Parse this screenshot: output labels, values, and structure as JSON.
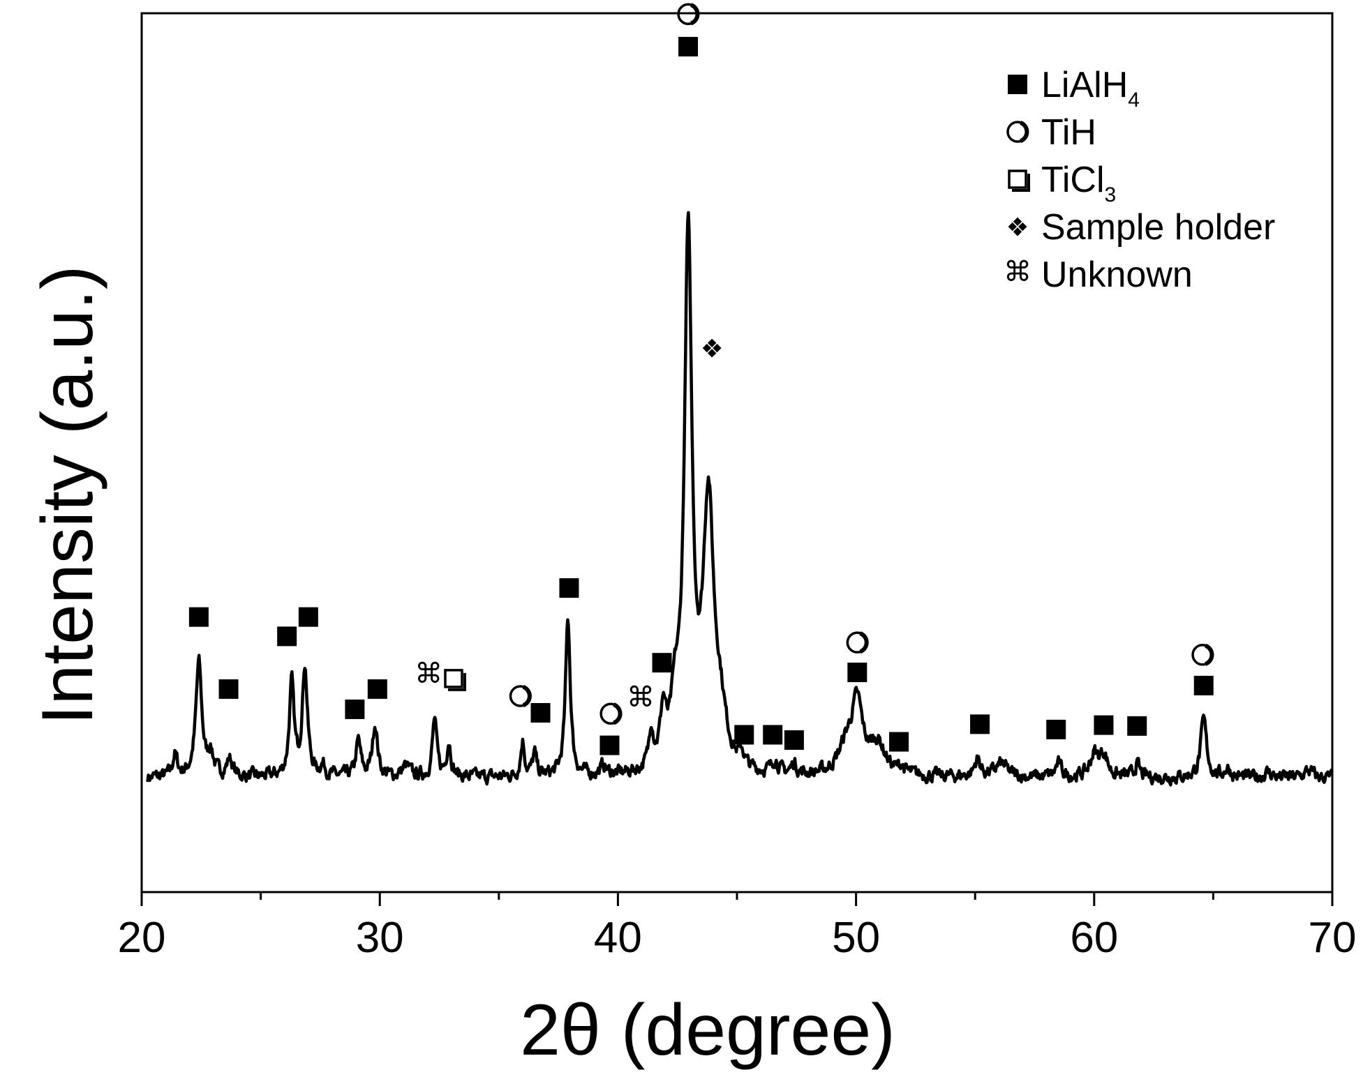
{
  "chart_data": {
    "type": "line",
    "title": "",
    "xlabel": "2θ (degree)",
    "ylabel": "Intensity (a.u.)",
    "xlim": [
      20,
      70
    ],
    "ylim": [
      0,
      100
    ],
    "x_ticks": [
      20,
      30,
      40,
      50,
      60,
      70
    ],
    "x_tick_labels": [
      "20",
      "30",
      "40",
      "50",
      "60",
      "70"
    ],
    "x_minor_ticks": [
      25,
      35,
      45,
      55,
      65
    ],
    "y_ticks_shown": false,
    "grid": false,
    "baseline": 13,
    "peaks": [
      {
        "x": 21.4,
        "h": 2.5,
        "w": 0.12
      },
      {
        "x": 22.4,
        "h": 13,
        "w": 0.15
      },
      {
        "x": 22.9,
        "h": 2.5,
        "w": 0.15
      },
      {
        "x": 23.7,
        "h": 2,
        "w": 0.15
      },
      {
        "x": 26.3,
        "h": 10.5,
        "w": 0.12
      },
      {
        "x": 26.85,
        "h": 12.5,
        "w": 0.13
      },
      {
        "x": 27.6,
        "h": 1.2,
        "w": 0.15
      },
      {
        "x": 29.1,
        "h": 4,
        "w": 0.12
      },
      {
        "x": 29.8,
        "h": 6,
        "w": 0.13
      },
      {
        "x": 31.1,
        "h": 1.2,
        "w": 0.2
      },
      {
        "x": 32.3,
        "h": 6.5,
        "w": 0.11
      },
      {
        "x": 32.9,
        "h": 4,
        "w": 0.11
      },
      {
        "x": 36,
        "h": 4,
        "w": 0.1
      },
      {
        "x": 36.5,
        "h": 2.5,
        "w": 0.1
      },
      {
        "x": 37.9,
        "h": 18,
        "w": 0.12
      },
      {
        "x": 39.4,
        "h": 1,
        "w": 0.15
      },
      {
        "x": 41.4,
        "h": 4.5,
        "w": 0.11
      },
      {
        "x": 41.9,
        "h": 6,
        "w": 0.15
      },
      {
        "x": 42.4,
        "h": 6,
        "w": 0.2
      },
      {
        "x": 42.95,
        "h": 60,
        "w": 0.19
      },
      {
        "x": 43.8,
        "h": 30,
        "w": 0.27
      },
      {
        "x": 44.3,
        "h": 5,
        "w": 0.3
      },
      {
        "x": 45.2,
        "h": 1.5,
        "w": 0.12
      },
      {
        "x": 46.6,
        "h": 1.5,
        "w": 0.15
      },
      {
        "x": 47.4,
        "h": 1.2,
        "w": 0.12
      },
      {
        "x": 49.6,
        "h": 3,
        "w": 0.4
      },
      {
        "x": 50.05,
        "h": 7.5,
        "w": 0.28
      },
      {
        "x": 50.9,
        "h": 3.5,
        "w": 0.4
      },
      {
        "x": 51.9,
        "h": 0.8,
        "w": 0.15
      },
      {
        "x": 55.1,
        "h": 2,
        "w": 0.15
      },
      {
        "x": 56.1,
        "h": 1.5,
        "w": 0.3
      },
      {
        "x": 58.5,
        "h": 1.5,
        "w": 0.15
      },
      {
        "x": 60,
        "h": 2.5,
        "w": 0.2
      },
      {
        "x": 60.4,
        "h": 2.5,
        "w": 0.2
      },
      {
        "x": 61.8,
        "h": 1.5,
        "w": 0.12
      },
      {
        "x": 64.6,
        "h": 6.5,
        "w": 0.15
      },
      {
        "x": 65.6,
        "h": 1,
        "w": 0.15
      },
      {
        "x": 67.3,
        "h": 0.6,
        "w": 0.2
      },
      {
        "x": 69,
        "h": 0.8,
        "w": 0.2
      }
    ],
    "annotations": [
      {
        "symbol": "filled-square",
        "x": 22.4,
        "y": 31.3
      },
      {
        "symbol": "filled-square",
        "x": 23.65,
        "y": 23.1
      },
      {
        "symbol": "filled-square",
        "x": 26.1,
        "y": 29.1
      },
      {
        "symbol": "filled-square",
        "x": 27,
        "y": 31.3
      },
      {
        "symbol": "filled-square",
        "x": 28.95,
        "y": 20.8
      },
      {
        "symbol": "filled-square",
        "x": 29.9,
        "y": 23.1
      },
      {
        "symbol": "unknown",
        "x": 32.05,
        "y": 24.6
      },
      {
        "symbol": "open-square",
        "x": 33.1,
        "y": 24.3
      },
      {
        "symbol": "open-circle",
        "x": 35.9,
        "y": 22.3
      },
      {
        "symbol": "filled-square",
        "x": 36.75,
        "y": 20.4
      },
      {
        "symbol": "filled-square",
        "x": 37.95,
        "y": 34.6
      },
      {
        "symbol": "open-circle",
        "x": 39.7,
        "y": 20.3
      },
      {
        "symbol": "filled-square",
        "x": 39.65,
        "y": 16.7
      },
      {
        "symbol": "unknown",
        "x": 40.95,
        "y": 21.9
      },
      {
        "symbol": "filled-square",
        "x": 41.85,
        "y": 26.1
      },
      {
        "symbol": "open-square",
        "x": 42.95,
        "y": 103.4
      },
      {
        "symbol": "open-circle",
        "x": 42.95,
        "y": 99.9
      },
      {
        "symbol": "filled-square",
        "x": 42.95,
        "y": 96.2
      },
      {
        "symbol": "sample-holder",
        "x": 43.95,
        "y": 61.9
      },
      {
        "symbol": "filled-square",
        "x": 45.3,
        "y": 17.9
      },
      {
        "symbol": "filled-square",
        "x": 46.5,
        "y": 17.9
      },
      {
        "symbol": "filled-square",
        "x": 47.4,
        "y": 17.3
      },
      {
        "symbol": "open-circle",
        "x": 50.05,
        "y": 28.4
      },
      {
        "symbol": "filled-square",
        "x": 50.05,
        "y": 25.0
      },
      {
        "symbol": "filled-square",
        "x": 51.8,
        "y": 17.1
      },
      {
        "symbol": "filled-square",
        "x": 55.2,
        "y": 19.1
      },
      {
        "symbol": "filled-square",
        "x": 58.4,
        "y": 18.5
      },
      {
        "symbol": "filled-square",
        "x": 60.4,
        "y": 19.0
      },
      {
        "symbol": "filled-square",
        "x": 61.8,
        "y": 18.9
      },
      {
        "symbol": "open-circle",
        "x": 64.55,
        "y": 27.0
      },
      {
        "symbol": "filled-square",
        "x": 64.6,
        "y": 23.5
      }
    ],
    "legend": {
      "placement": "top-right",
      "entries": [
        {
          "symbol": "filled-square",
          "label": "LiAlH",
          "sub": "4"
        },
        {
          "symbol": "open-circle",
          "label": "TiH",
          "sub": ""
        },
        {
          "symbol": "open-square",
          "label": "TiCl",
          "sub": "3"
        },
        {
          "symbol": "sample-holder",
          "label": "Sample holder",
          "sub": ""
        },
        {
          "symbol": "unknown",
          "label": "Unknown",
          "sub": ""
        }
      ]
    },
    "colors": {
      "line": "#000000",
      "axis": "#000000",
      "background": "#ffffff"
    }
  }
}
